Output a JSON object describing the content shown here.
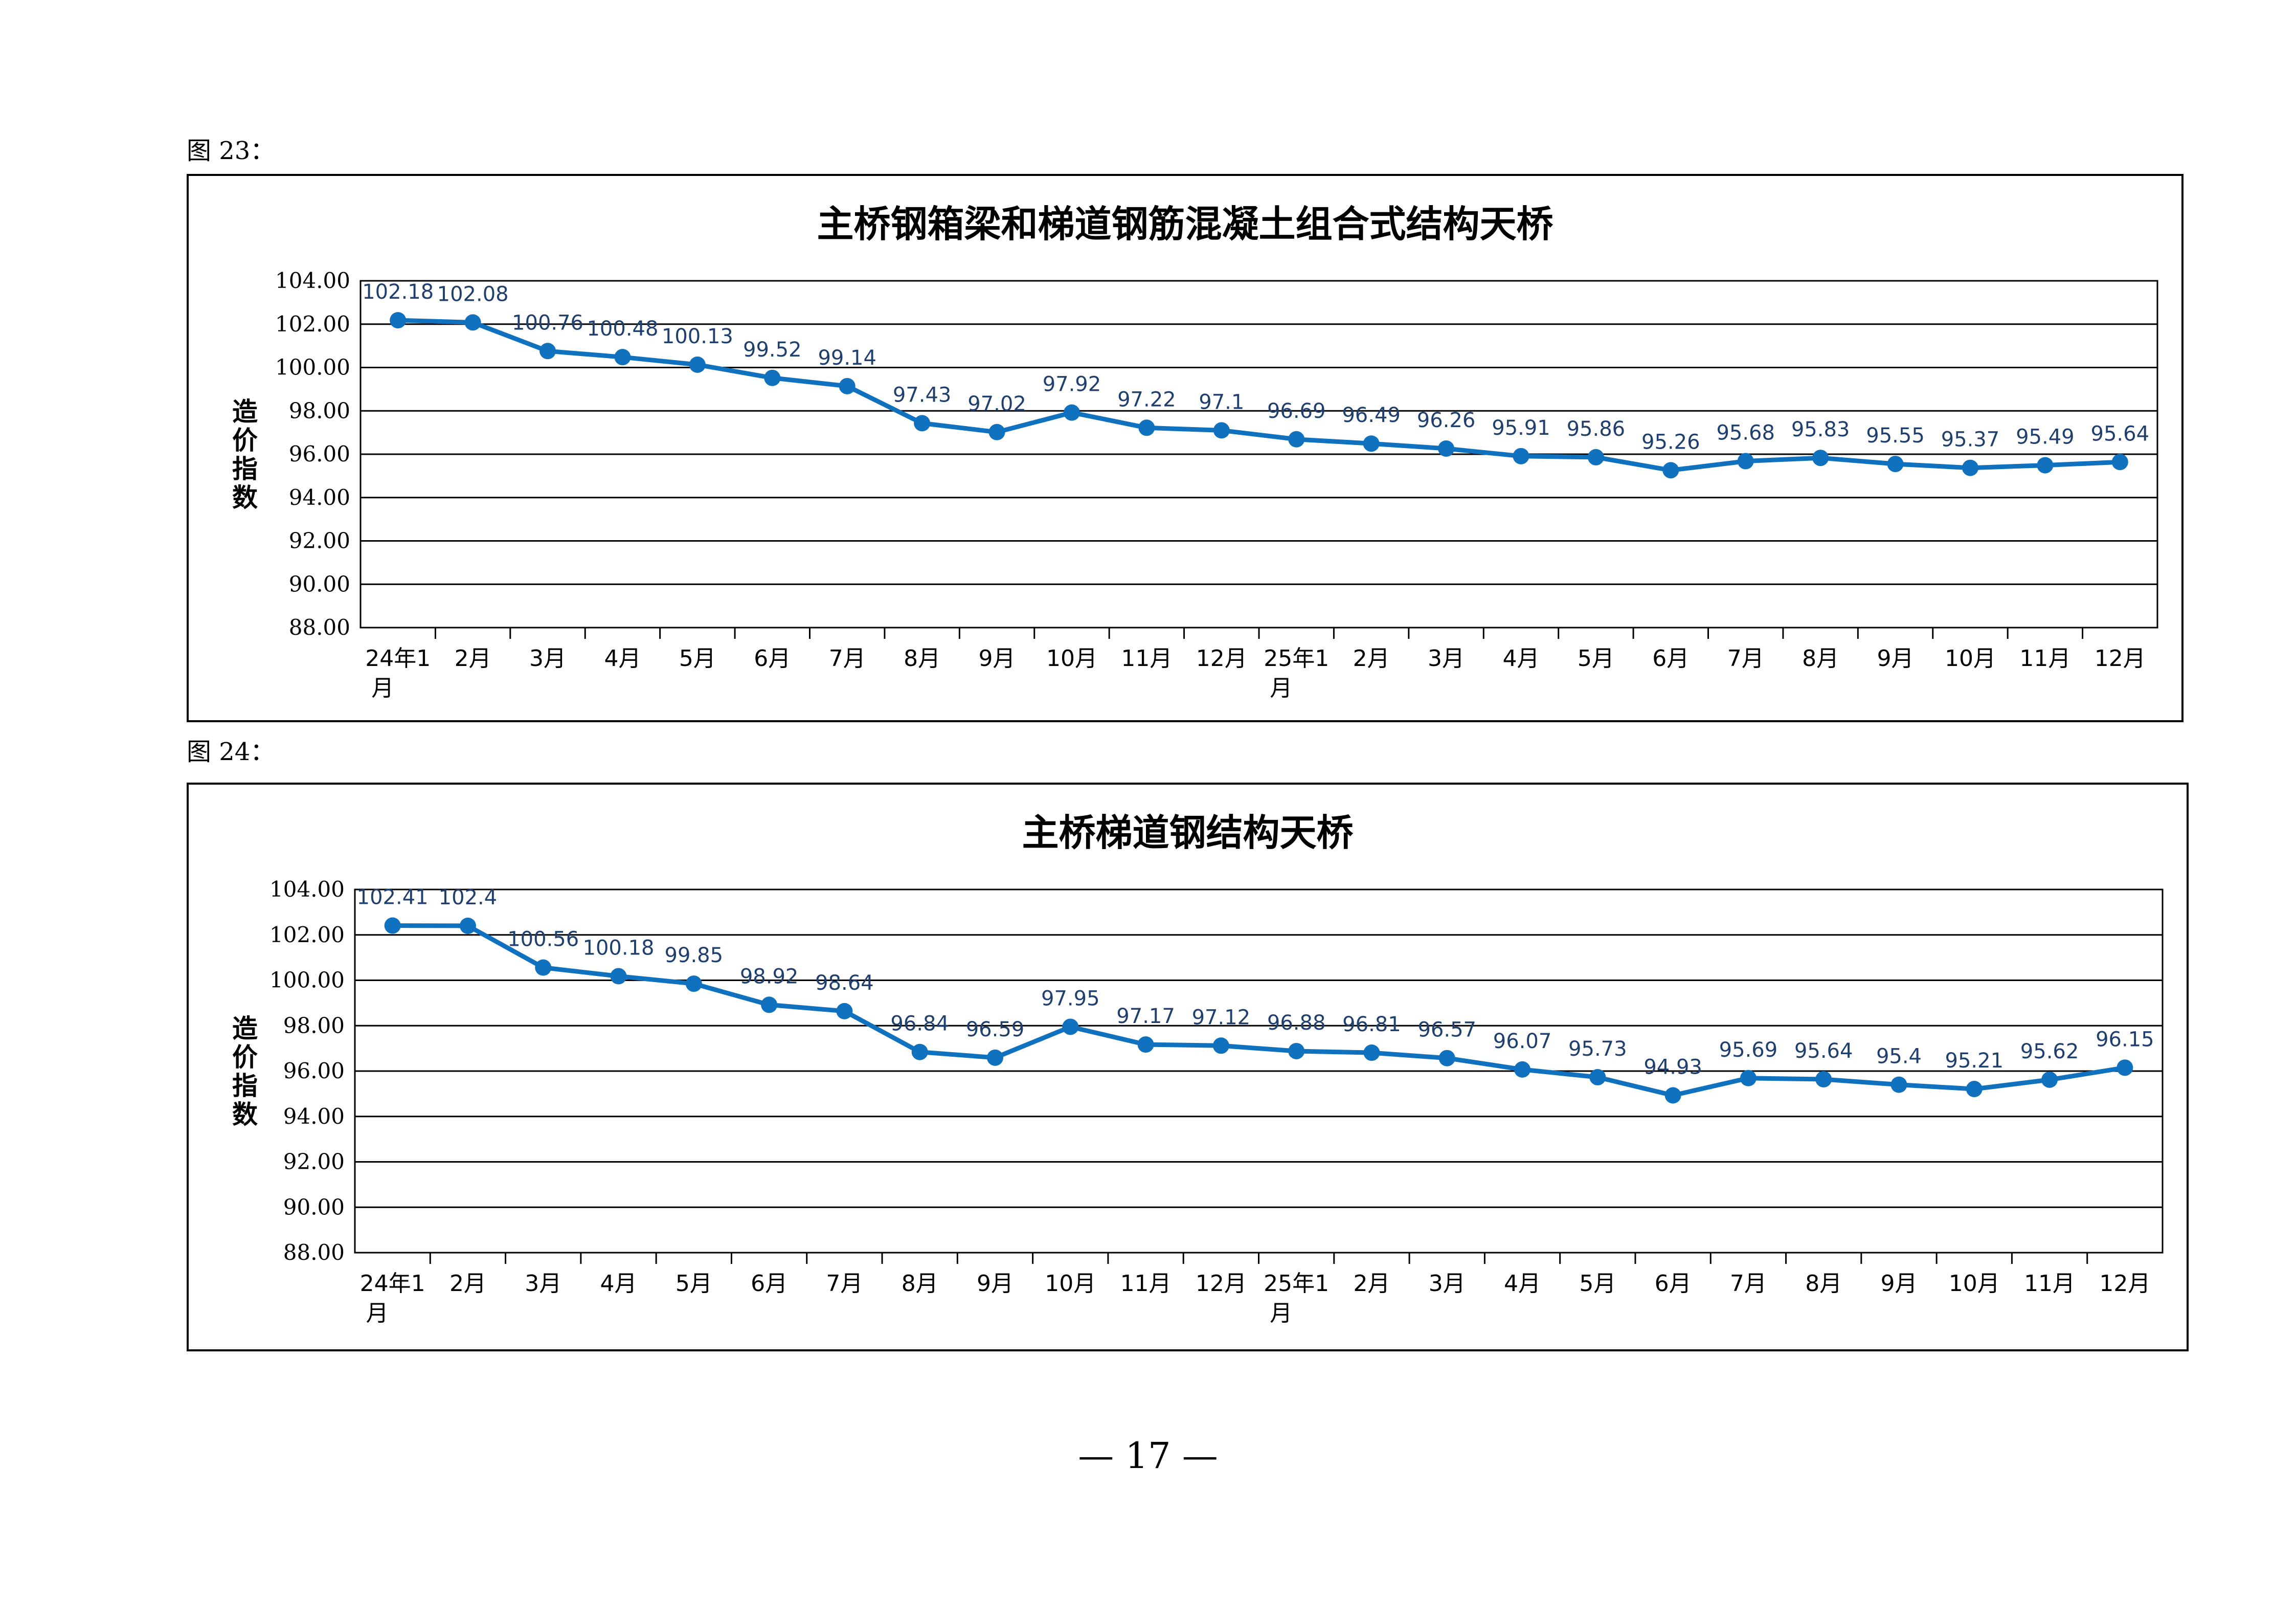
{
  "figures": [
    {
      "caption": "图 23："
    },
    {
      "caption": "图 24："
    }
  ],
  "page_number": "— 17 —",
  "chart_data": [
    {
      "type": "line",
      "title": "主桥钢箱梁和梯道钢筋混凝土组合式结构天桥",
      "xlabel": "",
      "ylabel": "造价指数",
      "ylim": [
        88,
        104
      ],
      "yticks": [
        "104.00",
        "102.00",
        "100.00",
        "98.00",
        "96.00",
        "94.00",
        "92.00",
        "90.00",
        "88.00"
      ],
      "grid": true,
      "color": "#1071be",
      "categories": [
        "24年1月",
        "2月",
        "3月",
        "4月",
        "5月",
        "6月",
        "7月",
        "8月",
        "9月",
        "10月",
        "11月",
        "12月",
        "25年1月",
        "2月",
        "3月",
        "4月",
        "5月",
        "6月",
        "7月",
        "8月",
        "9月",
        "10月",
        "11月",
        "12月"
      ],
      "labels": [
        "102.18",
        "102.08",
        "100.76",
        "100.48",
        "100.13",
        "99.52",
        "99.14",
        "97.43",
        "97.02",
        "97.92",
        "97.22",
        "97.1",
        "96.69",
        "96.49",
        "96.26",
        "95.91",
        "95.86",
        "95.26",
        "95.68",
        "95.83",
        "95.55",
        "95.37",
        "95.49",
        "95.64"
      ],
      "values": [
        102.18,
        102.08,
        100.76,
        100.48,
        100.13,
        99.52,
        99.14,
        97.43,
        97.02,
        97.92,
        97.22,
        97.1,
        96.69,
        96.49,
        96.26,
        95.91,
        95.86,
        95.26,
        95.68,
        95.83,
        95.55,
        95.37,
        95.49,
        95.64
      ]
    },
    {
      "type": "line",
      "title": "主桥梯道钢结构天桥",
      "xlabel": "",
      "ylabel": "造价指数",
      "ylim": [
        88,
        104
      ],
      "yticks": [
        "104.00",
        "102.00",
        "100.00",
        "98.00",
        "96.00",
        "94.00",
        "92.00",
        "90.00",
        "88.00"
      ],
      "grid": true,
      "color": "#1071be",
      "categories": [
        "24年1月",
        "2月",
        "3月",
        "4月",
        "5月",
        "6月",
        "7月",
        "8月",
        "9月",
        "10月",
        "11月",
        "12月",
        "25年1月",
        "2月",
        "3月",
        "4月",
        "5月",
        "6月",
        "7月",
        "8月",
        "9月",
        "10月",
        "11月",
        "12月"
      ],
      "labels": [
        "102.41",
        "102.4",
        "100.56",
        "100.18",
        "99.85",
        "98.92",
        "98.64",
        "96.84",
        "96.59",
        "97.95",
        "97.17",
        "97.12",
        "96.88",
        "96.81",
        "96.57",
        "96.07",
        "95.73",
        "94.93",
        "95.69",
        "95.64",
        "95.4",
        "95.21",
        "95.62",
        "96.15"
      ],
      "values": [
        102.41,
        102.4,
        100.56,
        100.18,
        99.85,
        98.92,
        98.64,
        96.84,
        96.59,
        97.95,
        97.17,
        97.12,
        96.88,
        96.81,
        96.57,
        96.07,
        95.73,
        94.93,
        95.69,
        95.64,
        95.4,
        95.21,
        95.62,
        96.15
      ]
    }
  ]
}
